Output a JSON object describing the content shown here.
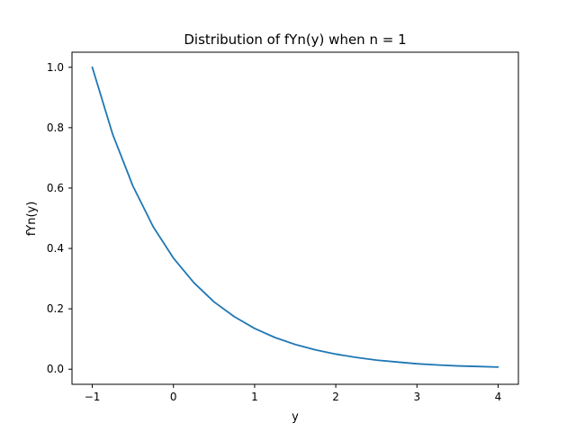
{
  "chart_data": {
    "type": "line",
    "title": "Distribution of fYn(y) when n = 1",
    "xlabel": "y",
    "ylabel": "fYn(y)",
    "xlim": [
      -1.25,
      4.25
    ],
    "ylim": [
      -0.05,
      1.05
    ],
    "grid": false,
    "legend": "none",
    "x_ticks": [
      {
        "value": -1,
        "label": "−1"
      },
      {
        "value": 0,
        "label": "0"
      },
      {
        "value": 1,
        "label": "1"
      },
      {
        "value": 2,
        "label": "2"
      },
      {
        "value": 3,
        "label": "3"
      },
      {
        "value": 4,
        "label": "4"
      }
    ],
    "y_ticks": [
      {
        "value": 0.0,
        "label": "0.0"
      },
      {
        "value": 0.2,
        "label": "0.2"
      },
      {
        "value": 0.4,
        "label": "0.4"
      },
      {
        "value": 0.6,
        "label": "0.6"
      },
      {
        "value": 0.8,
        "label": "0.8"
      },
      {
        "value": 1.0,
        "label": "1.0"
      }
    ],
    "series": [
      {
        "color": "#1f77b4",
        "x": [
          -1.0,
          -0.75,
          -0.5,
          -0.25,
          0.0,
          0.25,
          0.5,
          0.75,
          1.0,
          1.25,
          1.5,
          1.75,
          2.0,
          2.25,
          2.5,
          2.75,
          3.0,
          3.25,
          3.5,
          3.75,
          4.0
        ],
        "y": [
          1.0,
          0.779,
          0.607,
          0.472,
          0.368,
          0.287,
          0.223,
          0.174,
          0.135,
          0.105,
          0.082,
          0.064,
          0.05,
          0.039,
          0.03,
          0.024,
          0.018,
          0.014,
          0.011,
          0.009,
          0.007
        ]
      }
    ]
  }
}
